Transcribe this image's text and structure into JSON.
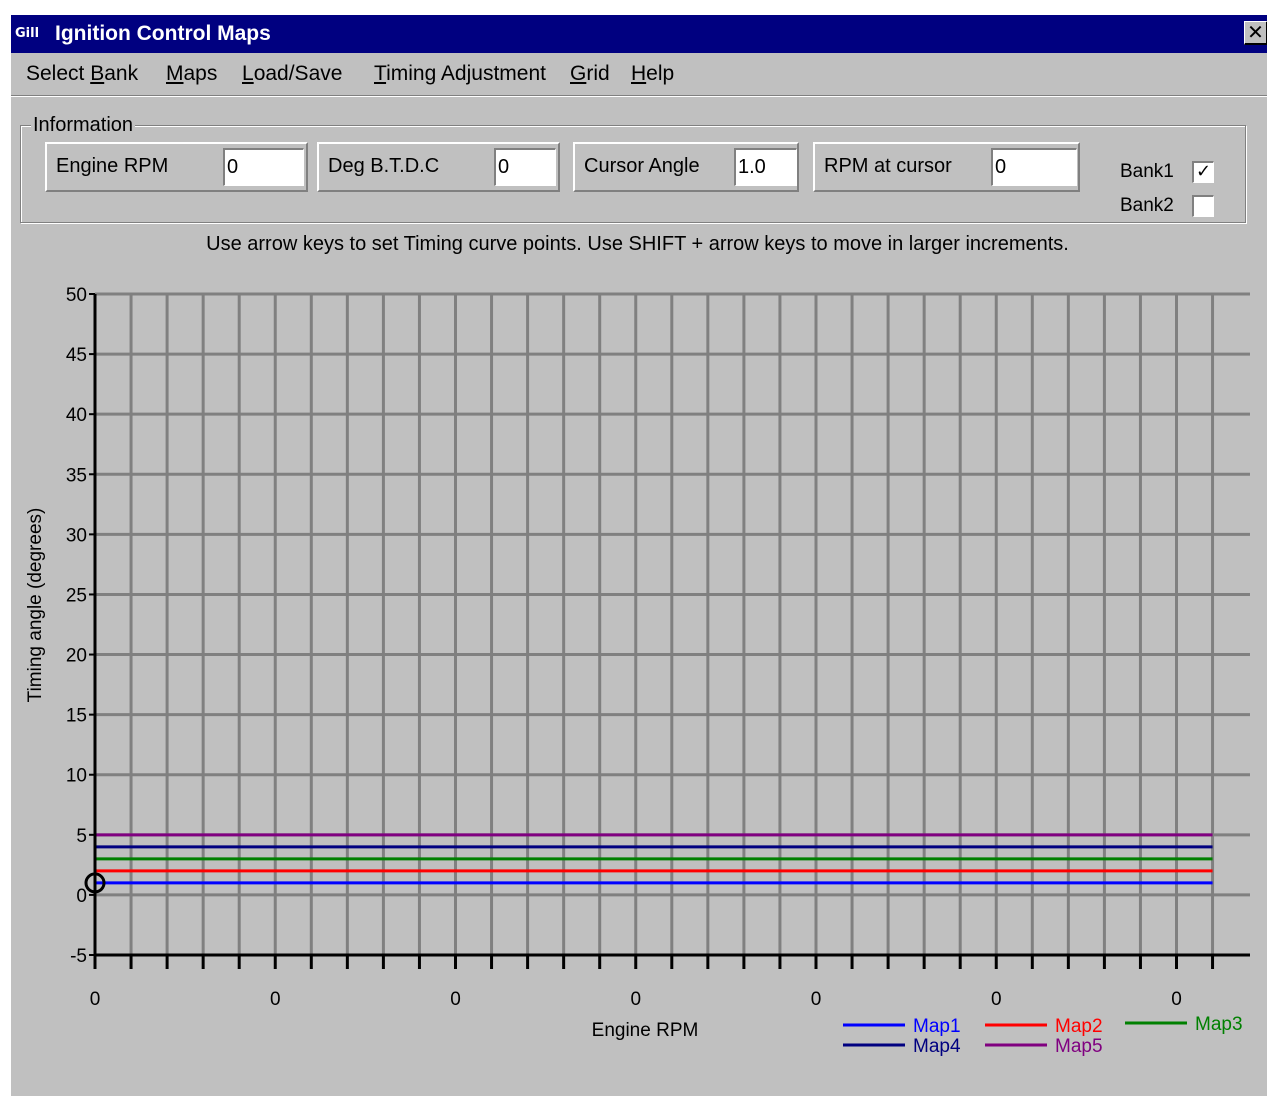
{
  "window": {
    "title": "Ignition Control Maps",
    "icon_text": "Gill",
    "close_glyph": "✕"
  },
  "menu": [
    {
      "label": "Select Bank",
      "mnemonic_index": 7
    },
    {
      "label": "Maps",
      "mnemonic_index": 0
    },
    {
      "label": "Load/Save",
      "mnemonic_index": 0
    },
    {
      "label": "Timing Adjustment",
      "mnemonic_index": 0
    },
    {
      "label": "Grid",
      "mnemonic_index": 0
    },
    {
      "label": "Help",
      "mnemonic_index": 0
    }
  ],
  "information": {
    "legend": "Information",
    "fields": [
      {
        "label": "Engine RPM",
        "value": "0"
      },
      {
        "label": "Deg B.T.D.C",
        "value": "0"
      },
      {
        "label": "Cursor Angle",
        "value": "1.0"
      },
      {
        "label": "RPM at cursor",
        "value": "0"
      }
    ],
    "banks": [
      {
        "label": "Bank1",
        "checked": true
      },
      {
        "label": "Bank2",
        "checked": false
      }
    ]
  },
  "instructions": "Use arrow keys to set Timing curve points.  Use SHIFT + arrow keys to move in larger increments.",
  "chart_data": {
    "type": "line",
    "xlabel": "Engine RPM",
    "ylabel": "Timing angle (degrees)",
    "ylim": [
      -5,
      50
    ],
    "y_ticks": [
      "50",
      "45",
      "40",
      "35",
      "30",
      "25",
      "20",
      "15",
      "10",
      "5",
      "0",
      "-5"
    ],
    "x_tick_labels": [
      "0",
      "0",
      "0",
      "0",
      "0",
      "0",
      "0"
    ],
    "grid": true,
    "series": [
      {
        "name": "Map1",
        "color": "#0000ff",
        "value": 1
      },
      {
        "name": "Map2",
        "color": "#ff0000",
        "value": 2
      },
      {
        "name": "Map3",
        "color": "#008000",
        "value": 3
      },
      {
        "name": "Map4",
        "color": "#000080",
        "value": 4
      },
      {
        "name": "Map5",
        "color": "#800080",
        "value": 5
      }
    ],
    "cursor": {
      "x": 0,
      "y": 1
    }
  },
  "colors": {
    "window_bg": "#c0c0c0",
    "titlebar": "#000080",
    "grid_line": "#808080",
    "axis": "#000000"
  }
}
